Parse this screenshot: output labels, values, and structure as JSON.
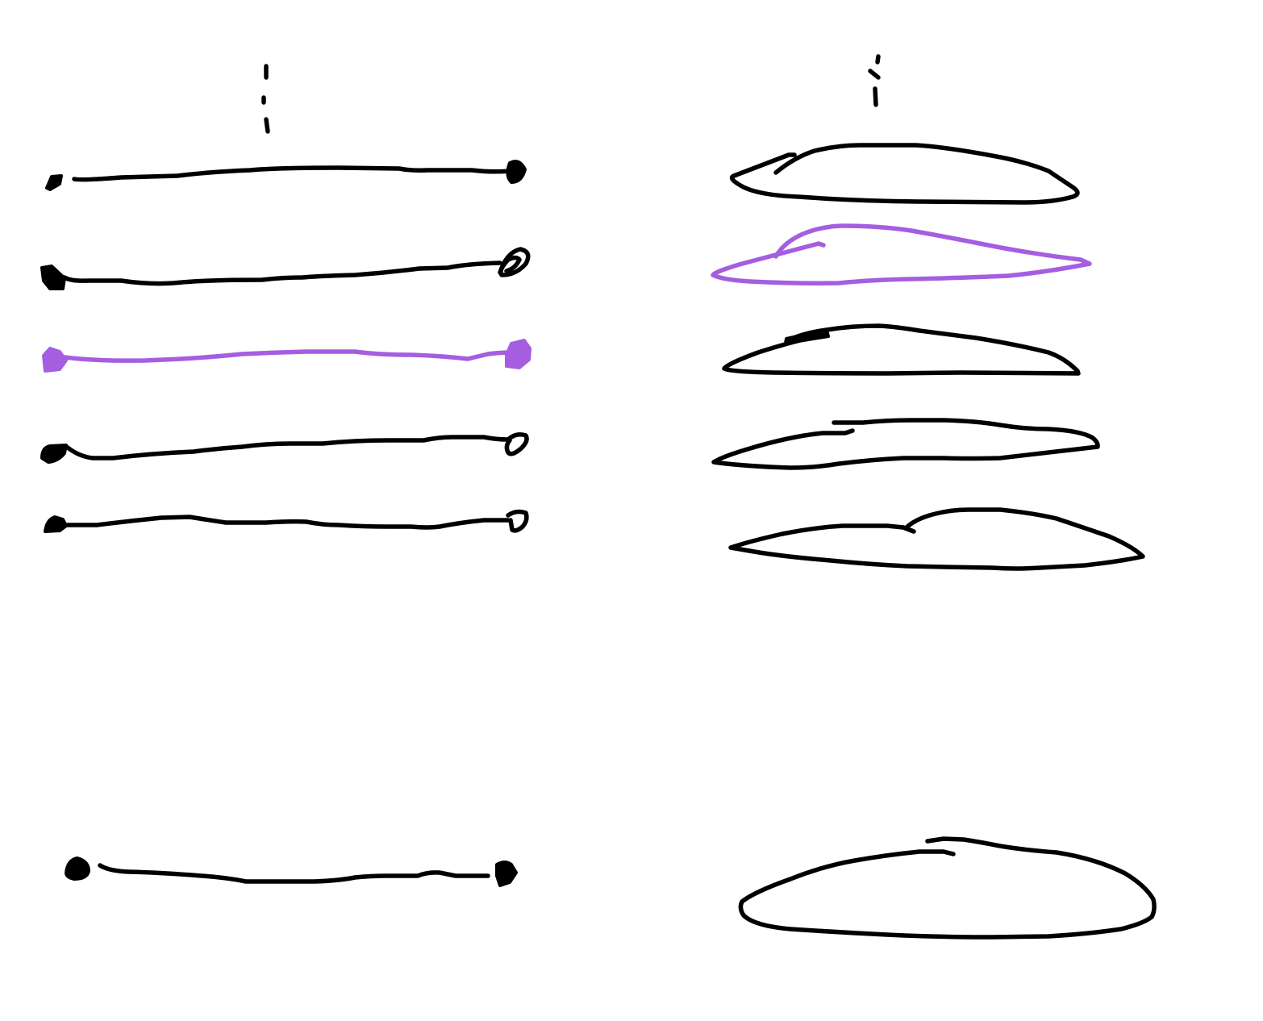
{
  "canvas": {
    "background": "#ffffff"
  },
  "colors": {
    "ink": "#000000",
    "highlight": "#a55ee0"
  },
  "sketch": {
    "left_column": {
      "kind": "line-with-end-dots",
      "count": 6,
      "highlighted_index": 2
    },
    "right_column": {
      "kind": "closed-lens-shape",
      "count": 6,
      "highlighted_index": 1
    },
    "gap_after_index": 4
  }
}
